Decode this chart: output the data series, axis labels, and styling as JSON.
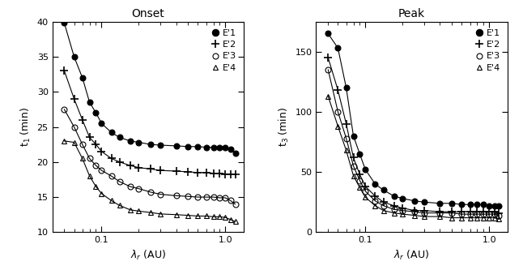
{
  "onset": {
    "title": "Onset",
    "ylabel": "t$_1$ (min)",
    "xlabel": "$\\lambda_r$ (AU)",
    "ylim": [
      10,
      40
    ],
    "xlim": [
      0.04,
      1.4
    ],
    "yticks": [
      10,
      15,
      20,
      25,
      30,
      35,
      40
    ],
    "series": [
      {
        "label": "E'1",
        "marker": "o",
        "fillstyle": "full",
        "x": [
          0.05,
          0.06,
          0.07,
          0.08,
          0.09,
          0.1,
          0.12,
          0.14,
          0.17,
          0.2,
          0.25,
          0.3,
          0.4,
          0.5,
          0.6,
          0.7,
          0.8,
          0.9,
          1.0,
          1.1,
          1.2
        ],
        "y": [
          39.8,
          35.0,
          32.0,
          28.5,
          27.0,
          25.5,
          24.2,
          23.5,
          23.0,
          22.8,
          22.5,
          22.4,
          22.3,
          22.2,
          22.2,
          22.1,
          22.1,
          22.0,
          22.0,
          21.8,
          21.2
        ]
      },
      {
        "label": "E'2",
        "marker": "+",
        "fillstyle": "none",
        "x": [
          0.05,
          0.06,
          0.07,
          0.08,
          0.09,
          0.1,
          0.12,
          0.14,
          0.17,
          0.2,
          0.25,
          0.3,
          0.4,
          0.5,
          0.6,
          0.7,
          0.8,
          0.9,
          1.0,
          1.1,
          1.2
        ],
        "y": [
          33.0,
          29.0,
          26.0,
          23.5,
          22.5,
          21.5,
          20.5,
          20.0,
          19.5,
          19.2,
          19.0,
          18.8,
          18.7,
          18.6,
          18.5,
          18.5,
          18.4,
          18.4,
          18.3,
          18.3,
          18.2
        ]
      },
      {
        "label": "E'3",
        "marker": "o",
        "fillstyle": "none",
        "x": [
          0.05,
          0.06,
          0.07,
          0.08,
          0.09,
          0.1,
          0.12,
          0.14,
          0.17,
          0.2,
          0.25,
          0.3,
          0.4,
          0.5,
          0.6,
          0.7,
          0.8,
          0.9,
          1.0,
          1.1,
          1.2
        ],
        "y": [
          27.5,
          25.0,
          22.5,
          20.5,
          19.5,
          18.8,
          18.0,
          17.2,
          16.5,
          16.2,
          15.7,
          15.4,
          15.2,
          15.1,
          15.0,
          15.0,
          15.0,
          14.9,
          14.9,
          14.5,
          14.0
        ]
      },
      {
        "label": "E'4",
        "marker": "^",
        "fillstyle": "none",
        "x": [
          0.05,
          0.06,
          0.07,
          0.08,
          0.09,
          0.1,
          0.12,
          0.14,
          0.17,
          0.2,
          0.25,
          0.3,
          0.4,
          0.5,
          0.6,
          0.7,
          0.8,
          0.9,
          1.0,
          1.1,
          1.2
        ],
        "y": [
          23.0,
          22.8,
          20.5,
          18.0,
          16.5,
          15.5,
          14.5,
          13.8,
          13.2,
          13.0,
          12.8,
          12.6,
          12.5,
          12.4,
          12.3,
          12.3,
          12.2,
          12.2,
          12.1,
          11.8,
          11.5
        ]
      }
    ]
  },
  "peak": {
    "title": "Peak",
    "ylabel": "t$_3$ (min)",
    "xlabel": "$\\lambda_r$ (AU)",
    "ylim": [
      0,
      175
    ],
    "xlim": [
      0.04,
      1.4
    ],
    "yticks": [
      0,
      50,
      100,
      150
    ],
    "series": [
      {
        "label": "E'1",
        "marker": "o",
        "fillstyle": "full",
        "x": [
          0.05,
          0.06,
          0.07,
          0.08,
          0.09,
          0.1,
          0.12,
          0.14,
          0.17,
          0.2,
          0.25,
          0.3,
          0.4,
          0.5,
          0.6,
          0.7,
          0.8,
          0.9,
          1.0,
          1.1,
          1.2
        ],
        "y": [
          165,
          153,
          120,
          80,
          65,
          52,
          40,
          35,
          30,
          28,
          26,
          25,
          24,
          24,
          23,
          23,
          23,
          23,
          22,
          22,
          22
        ]
      },
      {
        "label": "E'2",
        "marker": "+",
        "fillstyle": "none",
        "x": [
          0.05,
          0.06,
          0.07,
          0.08,
          0.09,
          0.1,
          0.12,
          0.14,
          0.17,
          0.2,
          0.25,
          0.3,
          0.4,
          0.5,
          0.6,
          0.7,
          0.8,
          0.9,
          1.0,
          1.1,
          1.2
        ],
        "y": [
          145,
          118,
          90,
          62,
          48,
          38,
          30,
          25,
          22,
          20,
          18,
          18,
          17,
          17,
          17,
          17,
          17,
          17,
          17,
          17,
          16
        ]
      },
      {
        "label": "E'3",
        "marker": "o",
        "fillstyle": "none",
        "x": [
          0.05,
          0.06,
          0.07,
          0.08,
          0.09,
          0.1,
          0.12,
          0.14,
          0.17,
          0.2,
          0.25,
          0.3,
          0.4,
          0.5,
          0.6,
          0.7,
          0.8,
          0.9,
          1.0,
          1.1,
          1.2
        ],
        "y": [
          135,
          100,
          78,
          55,
          43,
          34,
          26,
          22,
          19,
          18,
          17,
          16,
          16,
          16,
          15,
          15,
          15,
          15,
          15,
          15,
          14
        ]
      },
      {
        "label": "E'4",
        "marker": "^",
        "fillstyle": "none",
        "x": [
          0.05,
          0.06,
          0.07,
          0.08,
          0.09,
          0.1,
          0.12,
          0.14,
          0.17,
          0.2,
          0.25,
          0.3,
          0.4,
          0.5,
          0.6,
          0.7,
          0.8,
          0.9,
          1.0,
          1.1,
          1.2
        ],
        "y": [
          113,
          88,
          68,
          47,
          37,
          29,
          22,
          18,
          16,
          15,
          14,
          13,
          13,
          12,
          12,
          12,
          12,
          12,
          12,
          12,
          11
        ]
      }
    ]
  },
  "color": "black",
  "markersize": 4,
  "linewidth": 0.8,
  "legend_marker_sizes": {
    "o_full": 6,
    "+": 8,
    "o_open": 5,
    "^": 5
  }
}
